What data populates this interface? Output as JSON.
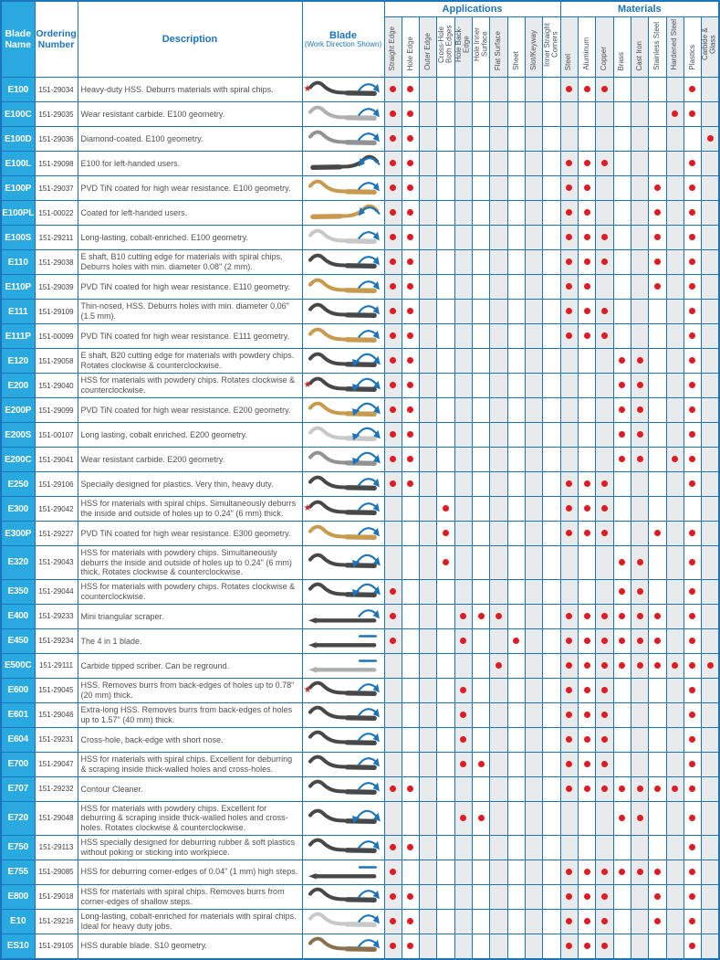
{
  "header": {
    "blade_name": "Blade Name",
    "ordering_number": "Ordering Number",
    "description": "Description",
    "blade_title": "Blade",
    "blade_subtitle": "(Work Direction Shown)",
    "applications_label": "Applications",
    "materials_label": "Materials",
    "application_columns": [
      "Straight Edge",
      "Hole Edge",
      "Outer Edge",
      "Cross-Hole Both Edges",
      "Hole Back-Edge",
      "Hole Inner Surface",
      "Flat Surface",
      "Sheet",
      "Slot/Keyway",
      "Inner Straight Corners"
    ],
    "material_columns": [
      "Steel",
      "Aluminum",
      "Copper",
      "Brass",
      "Cast Iron",
      "Stainless Steel",
      "Hardened Steel",
      "Plastics",
      "Carbide & Glass"
    ]
  },
  "colors": {
    "grid_blue": "#1c75bc",
    "name_cell_blue": "#29a9e0",
    "dot_red": "#e01b24",
    "star_red": "#c1272d",
    "shaded_column_gray": "#e9eaeb",
    "description_text": "#4f5052",
    "marker_blue": "#1c75bc"
  },
  "rows": [
    {
      "name": "E100",
      "order": "151-29034",
      "desc": "Heavy-duty HSS. Deburrs materials with spiral chips.",
      "star": true,
      "marker": "arc",
      "shape": "wave",
      "color": "#47484a",
      "apps": [
        1,
        2
      ],
      "mats": [
        1,
        2,
        3,
        8
      ]
    },
    {
      "name": "E100C",
      "order": "151-29035",
      "desc": "Wear resistant carbide. E100 geometry.",
      "star": false,
      "marker": "arc",
      "shape": "wave",
      "color": "#aeb0b2",
      "apps": [
        1,
        2
      ],
      "mats": [
        7,
        8
      ]
    },
    {
      "name": "E100D",
      "order": "151-29036",
      "desc": "Diamond-coated. E100 geometry.",
      "star": false,
      "marker": "arc",
      "shape": "wave",
      "color": "#909294",
      "apps": [
        1,
        2
      ],
      "mats": [
        9
      ]
    },
    {
      "name": "E100L",
      "order": "151-29098",
      "desc": "E100 for left-handed users.",
      "star": false,
      "marker": "arc-left",
      "shape": "wave-left",
      "color": "#47484a",
      "apps": [
        1,
        2
      ],
      "mats": [
        1,
        2,
        3,
        8
      ]
    },
    {
      "name": "E100P",
      "order": "151-29037",
      "desc": "PVD TiN coated for high wear resistance. E100 geometry.",
      "star": false,
      "marker": "arc",
      "shape": "wave",
      "color": "#c79a4e",
      "apps": [
        1,
        2
      ],
      "mats": [
        1,
        2,
        6,
        8
      ]
    },
    {
      "name": "E100PL",
      "order": "151-00022",
      "desc": "Coated for left-handed users.",
      "star": false,
      "marker": "arc-left",
      "shape": "wave-left",
      "color": "#c79a4e",
      "apps": [
        1,
        2
      ],
      "mats": [
        1,
        2,
        6,
        8
      ]
    },
    {
      "name": "E100S",
      "order": "151-29211",
      "desc": "Long-lasting, cobalt-enriched. E100 geometry.",
      "star": false,
      "marker": "arc",
      "shape": "wave",
      "color": "#c6c8ca",
      "apps": [
        1,
        2
      ],
      "mats": [
        1,
        2,
        3,
        6,
        8
      ]
    },
    {
      "name": "E110",
      "order": "151-29038",
      "desc": "E shaft, B10 cutting edge for materials with spiral chips. Deburrs holes with min. diameter 0.08\" (2 mm).",
      "star": false,
      "marker": "arc",
      "shape": "wave",
      "color": "#47484a",
      "apps": [
        1,
        2
      ],
      "mats": [
        1,
        2,
        3,
        6,
        8
      ]
    },
    {
      "name": "E110P",
      "order": "151-29039",
      "desc": "PVD TiN coated for high wear resistance. E110 geometry.",
      "star": false,
      "marker": "arc",
      "shape": "wave",
      "color": "#c79a4e",
      "apps": [
        1,
        2
      ],
      "mats": [
        1,
        2,
        6,
        8
      ]
    },
    {
      "name": "E111",
      "order": "151-29109",
      "desc": "Thin-nosed, HSS. Deburrs holes with min. diameter 0.06\" (1.5 mm).",
      "star": false,
      "marker": "arc",
      "shape": "wave",
      "color": "#47484a",
      "apps": [
        1,
        2
      ],
      "mats": [
        1,
        2,
        3,
        8
      ]
    },
    {
      "name": "E111P",
      "order": "151-00099",
      "desc": "PVD TiN coated for high wear resistance. E111 geometry.",
      "star": false,
      "marker": "arc",
      "shape": "wave",
      "color": "#c79a4e",
      "apps": [
        1,
        2
      ],
      "mats": [
        1,
        2,
        3,
        8
      ]
    },
    {
      "name": "E120",
      "order": "151-29058",
      "desc": "E shaft, B20 cutting edge for materials with powdery chips. Rotates clockwise & counterclockwise.",
      "star": false,
      "marker": "double",
      "shape": "wave",
      "color": "#47484a",
      "apps": [
        1,
        2
      ],
      "mats": [
        4,
        5,
        8
      ]
    },
    {
      "name": "E200",
      "order": "151-29040",
      "desc": "HSS for materials with powdery chips. Rotates clockwise & counterclockwise.",
      "star": true,
      "marker": "double",
      "shape": "wave",
      "color": "#47484a",
      "apps": [
        1,
        2
      ],
      "mats": [
        4,
        5,
        8
      ]
    },
    {
      "name": "E200P",
      "order": "151-29099",
      "desc": "PVD TiN coated for high wear resistance. E200 geometry.",
      "star": false,
      "marker": "double",
      "shape": "wave",
      "color": "#c79a4e",
      "apps": [
        1,
        2
      ],
      "mats": [
        4,
        5,
        8
      ]
    },
    {
      "name": "E200S",
      "order": "151-00107",
      "desc": "Long lasting, cobalt enriched. E200 geometry.",
      "star": false,
      "marker": "double",
      "shape": "wave",
      "color": "#c6c8ca",
      "apps": [
        1,
        2
      ],
      "mats": [
        4,
        5,
        8
      ]
    },
    {
      "name": "E200C",
      "order": "151-29041",
      "desc": "Wear resistant carbide. E200 geometry.",
      "star": false,
      "marker": "double",
      "shape": "wave",
      "color": "#909294",
      "apps": [
        1,
        2
      ],
      "mats": [
        4,
        5,
        7,
        8
      ]
    },
    {
      "name": "E250",
      "order": "151-29106",
      "desc": "Specially designed for plastics. Very thin, heavy duty.",
      "star": false,
      "marker": "arc",
      "shape": "wave",
      "color": "#47484a",
      "apps": [
        1,
        2
      ],
      "mats": [
        1,
        2,
        3,
        8
      ]
    },
    {
      "name": "E300",
      "order": "151-29042",
      "desc": "HSS for materials with spiral chips. Simultaneously deburrs the inside and outside of holes up to 0.24\" (6 mm) thick.",
      "star": true,
      "marker": "arc",
      "shape": "wave",
      "color": "#47484a",
      "apps": [
        4
      ],
      "mats": [
        1,
        2,
        3
      ]
    },
    {
      "name": "E300P",
      "order": "151-29227",
      "desc": "PVD TiN coated for high wear resistance. E300 geometry.",
      "star": false,
      "marker": "arc",
      "shape": "wave",
      "color": "#c79a4e",
      "apps": [
        4
      ],
      "mats": [
        1,
        2,
        3,
        6,
        8
      ]
    },
    {
      "name": "E320",
      "order": "151-29043",
      "desc": "HSS for materials with powdery chips. Simultaneously deburrs the inside and outside of holes up to 0.24\" (6 mm) thick. Rotates clockwise & counterclockwise.",
      "star": false,
      "marker": "double",
      "shape": "wave",
      "color": "#47484a",
      "apps": [
        4
      ],
      "mats": [
        4,
        5,
        8
      ]
    },
    {
      "name": "E350",
      "order": "151-29044",
      "desc": "HSS for materials with powdery chips. Rotates clockwise & counterclockwise.",
      "star": false,
      "marker": "double",
      "shape": "wave",
      "color": "#47484a",
      "apps": [
        1
      ],
      "mats": [
        4,
        5,
        8
      ]
    },
    {
      "name": "E400",
      "order": "151-29233",
      "desc": "Mini triangular scraper.",
      "star": false,
      "marker": "arc",
      "shape": "straight",
      "color": "#47484a",
      "apps": [
        1,
        5,
        6,
        7
      ],
      "mats": [
        1,
        2,
        3,
        4,
        5,
        6,
        8
      ]
    },
    {
      "name": "E450",
      "order": "151-29234",
      "desc": "The 4 in 1 blade.",
      "star": false,
      "marker": "dash",
      "shape": "straight",
      "color": "#47484a",
      "apps": [
        1,
        5,
        8
      ],
      "mats": [
        1,
        2,
        3,
        4,
        5,
        6,
        8
      ]
    },
    {
      "name": "E500C",
      "order": "151-29111",
      "desc": "Carbide tipped scriber. Can be reground.",
      "star": false,
      "marker": "dash",
      "shape": "straight",
      "color": "#aeb0b2",
      "apps": [
        7
      ],
      "mats": [
        1,
        2,
        3,
        4,
        5,
        6,
        7,
        8,
        9
      ]
    },
    {
      "name": "E600",
      "order": "151-29045",
      "desc": "HSS. Removes burrs from back-edges of holes up to 0.78\" (20 mm) thick.",
      "star": true,
      "marker": "arc",
      "shape": "wave",
      "color": "#47484a",
      "apps": [
        5
      ],
      "mats": [
        1,
        2,
        3,
        8
      ]
    },
    {
      "name": "E601",
      "order": "151-29046",
      "desc": "Extra-long HSS. Removes burrs from back-edges of holes up to 1.57\" (40 mm) thick.",
      "star": false,
      "marker": "arc",
      "shape": "wave",
      "color": "#47484a",
      "apps": [
        5
      ],
      "mats": [
        1,
        2,
        3,
        8
      ]
    },
    {
      "name": "E604",
      "order": "151-29231",
      "desc": "Cross-hole, back-edge with short nose.",
      "star": false,
      "marker": "arc",
      "shape": "wave",
      "color": "#47484a",
      "apps": [
        5
      ],
      "mats": [
        1,
        2,
        3,
        8
      ]
    },
    {
      "name": "E700",
      "order": "151-29047",
      "desc": "HSS for materials with spiral chips. Excellent for deburring & scraping inside thick-walled holes and cross-holes.",
      "star": false,
      "marker": "arc",
      "shape": "wave",
      "color": "#47484a",
      "apps": [
        5,
        6
      ],
      "mats": [
        1,
        2,
        3,
        8
      ]
    },
    {
      "name": "E707",
      "order": "151-29232",
      "desc": "Contour Cleaner.",
      "star": false,
      "marker": "arc",
      "shape": "wave",
      "color": "#47484a",
      "apps": [
        1,
        2
      ],
      "mats": [
        1,
        2,
        3,
        4,
        5,
        6,
        7,
        8
      ]
    },
    {
      "name": "E720",
      "order": "151-29048",
      "desc": "HSS for materials with powdery chips. Excellent for deburring & scraping inside thick-walled holes and cross-holes. Rotates clockwise & counterclockwise.",
      "star": false,
      "marker": "double",
      "shape": "wave",
      "color": "#47484a",
      "apps": [
        5,
        6
      ],
      "mats": [
        4,
        5,
        8
      ]
    },
    {
      "name": "E750",
      "order": "151-29113",
      "desc": "HSS specially designed for deburring rubber & soft plastics without poking or sticking into workpiece.",
      "star": false,
      "marker": "arc",
      "shape": "wave",
      "color": "#47484a",
      "apps": [
        1,
        2
      ],
      "mats": [
        8
      ]
    },
    {
      "name": "E755",
      "order": "151-29085",
      "desc": "HSS for deburring corner-edges of 0.04\" (1 mm) high steps.",
      "star": false,
      "marker": "dash",
      "shape": "straight",
      "color": "#47484a",
      "apps": [
        1
      ],
      "mats": [
        1,
        2,
        3,
        4,
        5,
        6,
        8
      ]
    },
    {
      "name": "E800",
      "order": "151-29018",
      "desc": "HSS for materials with spiral chips. Removes burrs from corner-edges of shallow steps.",
      "star": false,
      "marker": "arc",
      "shape": "wave",
      "color": "#47484a",
      "apps": [
        1,
        2
      ],
      "mats": [
        1,
        2,
        3,
        6,
        8
      ]
    },
    {
      "name": "E10",
      "order": "151-29216",
      "desc": "Long-lasting, cobalt-enriched for materials with spiral chips. Ideal for heavy duty jobs.",
      "star": false,
      "marker": "arc",
      "shape": "wave",
      "color": "#c6c8ca",
      "apps": [
        1,
        2
      ],
      "mats": [
        1,
        2,
        3,
        6,
        8
      ]
    },
    {
      "name": "ES10",
      "order": "151-29105",
      "desc": "HSS durable blade. S10 geometry.",
      "star": false,
      "marker": "arc",
      "shape": "wave",
      "color": "#8c6f4e",
      "apps": [
        1,
        2
      ],
      "mats": [
        1,
        2,
        3,
        8
      ]
    }
  ]
}
